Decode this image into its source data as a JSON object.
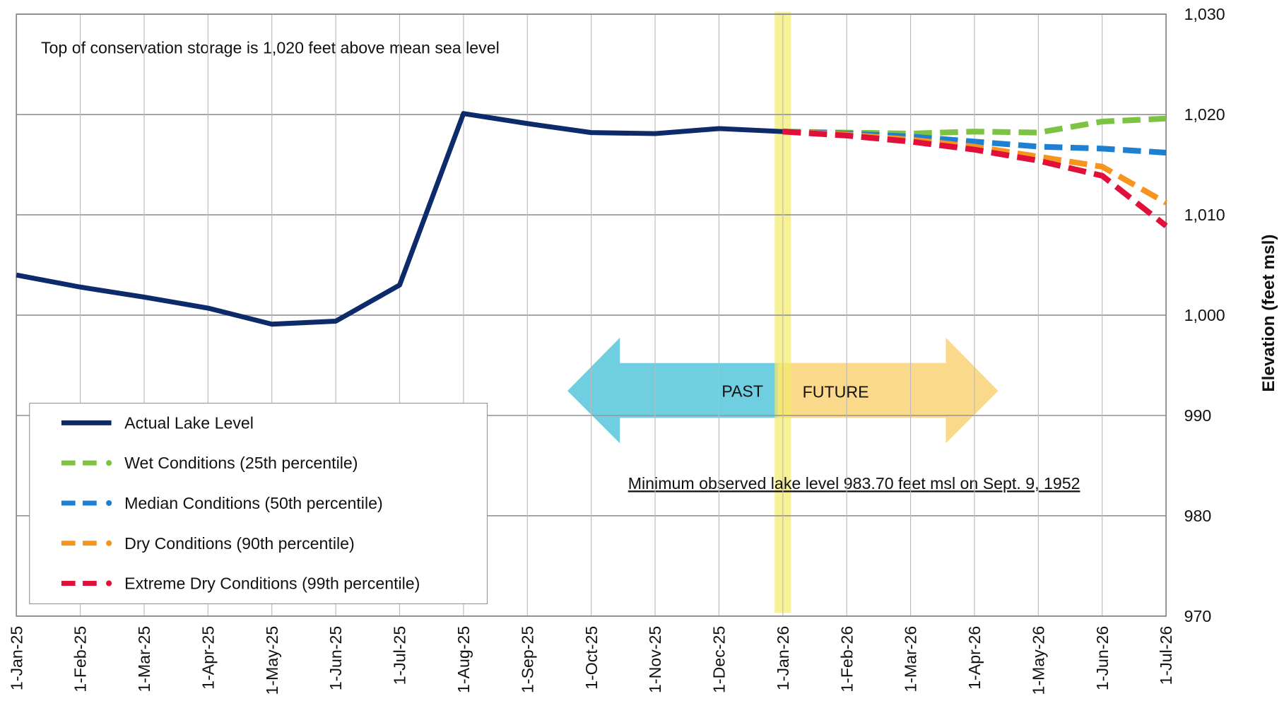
{
  "chart_data": {
    "type": "line",
    "y_axis_label": "Elevation (feet msl)",
    "annotations": [
      "Top of conservation storage is 1,020 feet above mean sea level",
      "Minimum observed lake level 983.70 feet msl on Sept. 9, 1952",
      "PAST",
      "FUTURE"
    ],
    "categories": [
      "1-Jan-25",
      "1-Feb-25",
      "1-Mar-25",
      "1-Apr-25",
      "1-May-25",
      "1-Jun-25",
      "1-Jul-25",
      "1-Aug-25",
      "1-Sep-25",
      "1-Oct-25",
      "1-Nov-25",
      "1-Dec-25",
      "1-Jan-26",
      "1-Feb-26",
      "1-Mar-26",
      "1-Apr-26",
      "1-May-26",
      "1-Jun-26",
      "1-Jul-26"
    ],
    "series": [
      {
        "name": "Actual Lake Level",
        "color": "#0d2a6b",
        "dashed": false,
        "values": [
          1004,
          1002.8,
          1001.8,
          1000.7,
          999.1,
          999.4,
          1003,
          1020.1,
          1019.1,
          1018.2,
          1018.1,
          1018.6,
          1018.3,
          null,
          null,
          null,
          null,
          null,
          null
        ]
      },
      {
        "name": "Wet Conditions (25th percentile)",
        "color": "#7dc242",
        "dashed": true,
        "values": [
          null,
          null,
          null,
          null,
          null,
          null,
          null,
          null,
          null,
          null,
          null,
          null,
          1018.3,
          1018.2,
          1018.1,
          1018.3,
          1018.2,
          1019.3,
          1019.6
        ]
      },
      {
        "name": "Median Conditions (50th percentile)",
        "color": "#1f7fd0",
        "dashed": true,
        "values": [
          null,
          null,
          null,
          null,
          null,
          null,
          null,
          null,
          null,
          null,
          null,
          null,
          1018.3,
          1018.1,
          1017.8,
          1017.3,
          1016.8,
          1016.6,
          1016.2
        ]
      },
      {
        "name": "Dry Conditions (90th percentile)",
        "color": "#f7941d",
        "dashed": true,
        "values": [
          null,
          null,
          null,
          null,
          null,
          null,
          null,
          null,
          null,
          null,
          null,
          null,
          1018.3,
          1018.0,
          1017.5,
          1016.8,
          1015.8,
          1014.8,
          1011.2
        ]
      },
      {
        "name": "Extreme Dry Conditions (99th percentile)",
        "color": "#e0103a",
        "dashed": true,
        "values": [
          null,
          null,
          null,
          null,
          null,
          null,
          null,
          null,
          null,
          null,
          null,
          null,
          1018.3,
          1017.9,
          1017.3,
          1016.5,
          1015.4,
          1013.9,
          1008.9
        ]
      }
    ],
    "ylim": [
      970,
      1030
    ],
    "yticks": [
      {
        "value": 1030,
        "label": "1,030"
      },
      {
        "value": 1020,
        "label": "1,020"
      },
      {
        "value": 1010,
        "label": "1,010"
      },
      {
        "value": 1000,
        "label": "1,000"
      },
      990,
      980,
      970
    ],
    "grid": true
  }
}
